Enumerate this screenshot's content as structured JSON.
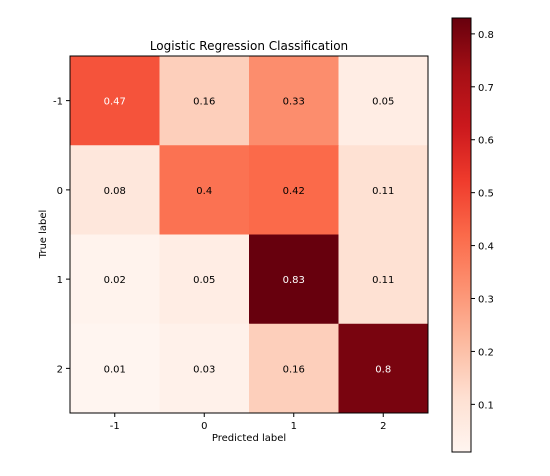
{
  "chart_data": {
    "type": "heatmap",
    "title": "Logistic Regression Classification",
    "xlabel": "Predicted label",
    "ylabel": "True label",
    "x_categories": [
      "-1",
      "0",
      "1",
      "2"
    ],
    "y_categories": [
      "-1",
      "0",
      "1",
      "2"
    ],
    "values": [
      [
        0.47,
        0.16,
        0.33,
        0.05
      ],
      [
        0.08,
        0.4,
        0.42,
        0.11
      ],
      [
        0.02,
        0.05,
        0.83,
        0.11
      ],
      [
        0.01,
        0.03,
        0.16,
        0.8
      ]
    ],
    "colormap": "Reds",
    "colorbar": {
      "range": [
        0.01,
        0.83
      ],
      "ticks": [
        "0.1",
        "0.2",
        "0.3",
        "0.4",
        "0.5",
        "0.6",
        "0.7",
        "0.8"
      ]
    }
  }
}
